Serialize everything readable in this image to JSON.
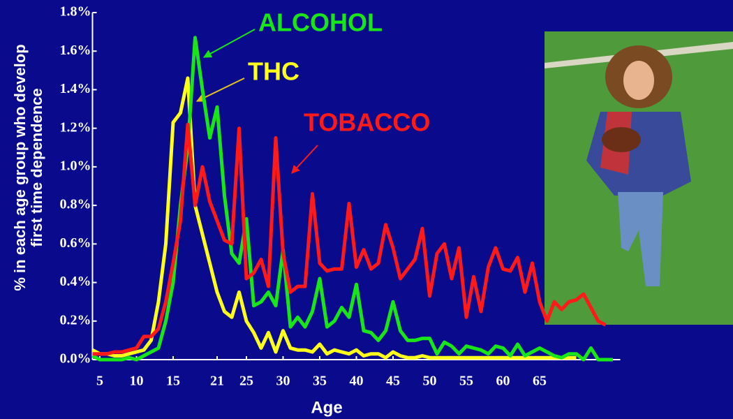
{
  "chart_data": {
    "type": "line",
    "xlabel": "Age",
    "ylabel": [
      "% in each age group who develop",
      "first time dependence"
    ],
    "x": [
      4,
      5,
      6,
      7,
      8,
      9,
      10,
      11,
      12,
      13,
      14,
      15,
      16,
      17,
      18,
      19,
      20,
      21,
      22,
      23,
      24,
      25,
      26,
      27,
      28,
      29,
      30,
      31,
      32,
      33,
      34,
      35,
      36,
      37,
      38,
      39,
      40,
      41,
      42,
      43,
      44,
      45,
      46,
      47,
      48,
      49,
      50,
      51,
      52,
      53,
      54,
      55,
      56,
      57,
      58,
      59,
      60,
      61,
      62,
      63,
      64,
      65,
      66,
      67,
      68,
      69,
      70,
      71,
      72,
      73,
      74,
      75
    ],
    "series": [
      {
        "name": "ALCOHOL",
        "color": "#19e619",
        "values": [
          0.02,
          0,
          0,
          0,
          0,
          0.01,
          0,
          0.02,
          0.04,
          0.06,
          0.2,
          0.4,
          0.8,
          1.1,
          1.67,
          1.4,
          1.15,
          1.31,
          0.85,
          0.55,
          0.5,
          0.73,
          0.28,
          0.3,
          0.35,
          0.28,
          0.57,
          0.17,
          0.22,
          0.17,
          0.25,
          0.42,
          0.17,
          0.2,
          0.27,
          0.22,
          0.39,
          0.15,
          0.14,
          0.1,
          0.15,
          0.3,
          0.15,
          0.1,
          0.1,
          0.11,
          0.11,
          0.03,
          0.09,
          0.07,
          0.03,
          0.07,
          0.06,
          0.05,
          0.03,
          0.07,
          0.06,
          0.02,
          0.08,
          0.02,
          0.04,
          0.06,
          0.04,
          0.02,
          0.01,
          0.03,
          0.03,
          0,
          0.06,
          0,
          0,
          0
        ]
      },
      {
        "name": "THC",
        "color": "#ffff1a",
        "values": [
          0.05,
          0.03,
          0.03,
          0.02,
          0.02,
          0.03,
          0.04,
          0.05,
          0.1,
          0.3,
          0.6,
          1.23,
          1.28,
          1.46,
          0.8,
          0.65,
          0.5,
          0.35,
          0.25,
          0.22,
          0.35,
          0.2,
          0.14,
          0.06,
          0.14,
          0.04,
          0.15,
          0.06,
          0.05,
          0.05,
          0.04,
          0.08,
          0.03,
          0.05,
          0.04,
          0.03,
          0.05,
          0.02,
          0.03,
          0.03,
          0.01,
          0.04,
          0.02,
          0.01,
          0.01,
          0.02,
          0.01,
          0.01,
          0.01,
          0.01,
          0.01,
          0.01,
          0.01,
          0.01,
          0.01,
          0.01,
          0.01,
          0.01,
          0.01,
          0.01,
          0.01,
          0.01,
          0.01,
          0.01,
          0.01,
          0.01,
          0.01,
          null,
          null,
          null,
          null,
          null
        ]
      },
      {
        "name": "TOBACCO",
        "color": "#ff1a1a",
        "values": [
          0.03,
          0.03,
          0.03,
          0.04,
          0.04,
          0.05,
          0.06,
          0.12,
          0.12,
          0.16,
          0.3,
          0.5,
          0.72,
          1.22,
          0.8,
          1.0,
          0.82,
          0.72,
          0.62,
          0.6,
          1.2,
          0.42,
          0.45,
          0.52,
          0.38,
          1.15,
          0.55,
          0.35,
          0.38,
          0.38,
          0.86,
          0.5,
          0.46,
          0.47,
          0.47,
          0.81,
          0.48,
          0.57,
          0.47,
          0.5,
          0.7,
          0.58,
          0.42,
          0.47,
          0.52,
          0.68,
          0.33,
          0.55,
          0.6,
          0.42,
          0.58,
          0.22,
          0.43,
          0.25,
          0.48,
          0.58,
          0.47,
          0.46,
          0.53,
          0.35,
          0.5,
          0.3,
          0.2,
          0.3,
          0.26,
          0.3,
          0.31,
          0.34,
          0.27,
          0.2,
          0.18,
          null
        ]
      }
    ],
    "xlim": [
      4,
      76
    ],
    "xticks": [
      5,
      10,
      15,
      21,
      25,
      30,
      35,
      40,
      45,
      50,
      55,
      60,
      65
    ],
    "ylim": [
      0,
      1.8
    ],
    "yticks": [
      {
        "value": 0,
        "label": "0.0%"
      },
      {
        "value": 0.2,
        "label": "0.2%"
      },
      {
        "value": 0.4,
        "label": "0.4%"
      },
      {
        "value": 0.6,
        "label": "0.6%"
      },
      {
        "value": 0.8,
        "label": "0.8%"
      },
      {
        "value": 1.0,
        "label": "1.0%"
      },
      {
        "value": 1.2,
        "label": "1.2%"
      },
      {
        "value": 1.4,
        "label": "1.4%"
      },
      {
        "value": 1.6,
        "label": "1.6%"
      },
      {
        "value": 1.8,
        "label": "1.8%"
      }
    ],
    "grid": false
  }
}
